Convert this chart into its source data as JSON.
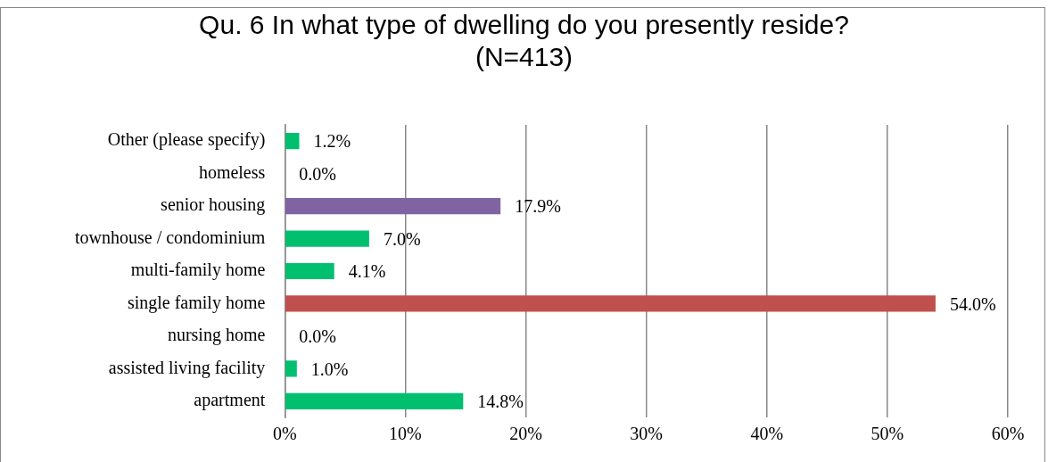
{
  "chart_data": {
    "type": "bar",
    "orientation": "horizontal",
    "title": "Qu. 6 In what type of dwelling do you presently reside?\n(N=413)",
    "categories": [
      "Other (please specify)",
      "homeless",
      "senior housing",
      "townhouse / condominium",
      "multi-family home",
      "single family home",
      "nursing home",
      "assisted living facility",
      "apartment"
    ],
    "values": [
      1.2,
      0,
      17.9,
      7.0,
      4.1,
      54.0,
      0,
      1.0,
      14.8
    ],
    "colors": [
      "#00c070",
      "#00c070",
      "#8064a2",
      "#00c070",
      "#00c070",
      "#c0504d",
      "#00c070",
      "#00c070",
      "#00c070"
    ],
    "value_labels": [
      "1.2%",
      "0.0%",
      "17.9%",
      "7.0%",
      "4.1%",
      "54.0%",
      "0.0%",
      "1.0%",
      "14.8%"
    ],
    "xlim": [
      0,
      60
    ],
    "xticks": [
      {
        "value": 0,
        "label": "0%"
      },
      {
        "value": 10,
        "label": "10%"
      },
      {
        "value": 20,
        "label": "20%"
      },
      {
        "value": 30,
        "label": "30%"
      },
      {
        "value": 40,
        "label": "40%"
      },
      {
        "value": 50,
        "label": "50%"
      },
      {
        "value": 60,
        "label": "60%"
      }
    ],
    "grid": "x",
    "legend": false
  }
}
